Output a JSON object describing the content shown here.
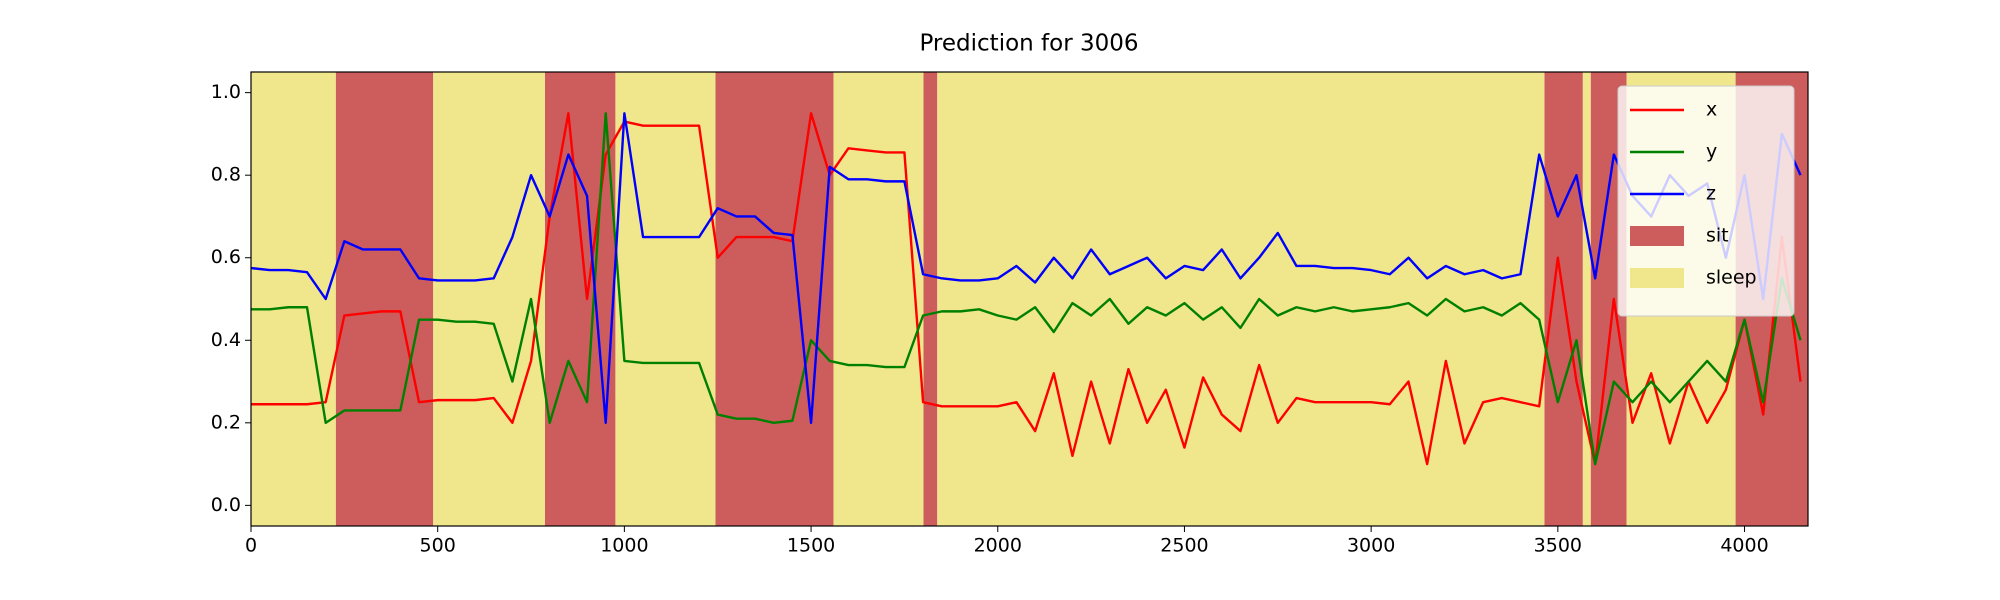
{
  "chart_data": {
    "type": "line",
    "title": "Prediction for 3006",
    "x": [
      0,
      50,
      100,
      150,
      200,
      250,
      300,
      350,
      400,
      450,
      500,
      550,
      600,
      650,
      700,
      750,
      800,
      850,
      900,
      950,
      1000,
      1050,
      1100,
      1150,
      1200,
      1250,
      1300,
      1350,
      1400,
      1450,
      1500,
      1550,
      1600,
      1650,
      1700,
      1750,
      1800,
      1850,
      1900,
      1950,
      2000,
      2050,
      2100,
      2150,
      2200,
      2250,
      2300,
      2350,
      2400,
      2450,
      2500,
      2550,
      2600,
      2650,
      2700,
      2750,
      2800,
      2850,
      2900,
      2950,
      3000,
      3050,
      3100,
      3150,
      3200,
      3250,
      3300,
      3350,
      3400,
      3450,
      3500,
      3550,
      3600,
      3650,
      3700,
      3750,
      3800,
      3850,
      3900,
      3950,
      4000,
      4050,
      4100,
      4150
    ],
    "series": [
      {
        "name": "x",
        "color": "#ff0000",
        "values": [
          0.245,
          0.245,
          0.245,
          0.245,
          0.25,
          0.46,
          0.465,
          0.47,
          0.47,
          0.25,
          0.255,
          0.255,
          0.255,
          0.26,
          0.2,
          0.35,
          0.7,
          0.95,
          0.5,
          0.85,
          0.93,
          0.92,
          0.92,
          0.92,
          0.92,
          0.6,
          0.65,
          0.65,
          0.65,
          0.64,
          0.95,
          0.8,
          0.865,
          0.86,
          0.855,
          0.855,
          0.25,
          0.24,
          0.24,
          0.24,
          0.24,
          0.25,
          0.18,
          0.32,
          0.12,
          0.3,
          0.15,
          0.33,
          0.2,
          0.28,
          0.14,
          0.31,
          0.22,
          0.18,
          0.34,
          0.2,
          0.26,
          0.25,
          0.25,
          0.25,
          0.25,
          0.245,
          0.3,
          0.1,
          0.35,
          0.15,
          0.25,
          0.26,
          0.25,
          0.24,
          0.6,
          0.3,
          0.1,
          0.5,
          0.2,
          0.32,
          0.15,
          0.3,
          0.2,
          0.28,
          0.45,
          0.22,
          0.65,
          0.3
        ]
      },
      {
        "name": "y",
        "color": "#008000",
        "values": [
          0.475,
          0.475,
          0.48,
          0.48,
          0.2,
          0.23,
          0.23,
          0.23,
          0.23,
          0.45,
          0.45,
          0.445,
          0.445,
          0.44,
          0.3,
          0.5,
          0.2,
          0.35,
          0.25,
          0.95,
          0.35,
          0.345,
          0.345,
          0.345,
          0.345,
          0.22,
          0.21,
          0.21,
          0.2,
          0.205,
          0.4,
          0.35,
          0.34,
          0.34,
          0.335,
          0.335,
          0.46,
          0.47,
          0.47,
          0.475,
          0.46,
          0.45,
          0.48,
          0.42,
          0.49,
          0.46,
          0.5,
          0.44,
          0.48,
          0.46,
          0.49,
          0.45,
          0.48,
          0.43,
          0.5,
          0.46,
          0.48,
          0.47,
          0.48,
          0.47,
          0.475,
          0.48,
          0.49,
          0.46,
          0.5,
          0.47,
          0.48,
          0.46,
          0.49,
          0.45,
          0.25,
          0.4,
          0.1,
          0.3,
          0.25,
          0.3,
          0.25,
          0.3,
          0.35,
          0.3,
          0.45,
          0.25,
          0.55,
          0.4
        ]
      },
      {
        "name": "z",
        "color": "#0000ff",
        "values": [
          0.575,
          0.57,
          0.57,
          0.565,
          0.5,
          0.64,
          0.62,
          0.62,
          0.62,
          0.55,
          0.545,
          0.545,
          0.545,
          0.55,
          0.65,
          0.8,
          0.7,
          0.85,
          0.75,
          0.2,
          0.95,
          0.65,
          0.65,
          0.65,
          0.65,
          0.72,
          0.7,
          0.7,
          0.66,
          0.655,
          0.2,
          0.82,
          0.79,
          0.79,
          0.785,
          0.785,
          0.56,
          0.55,
          0.545,
          0.545,
          0.55,
          0.58,
          0.54,
          0.6,
          0.55,
          0.62,
          0.56,
          0.58,
          0.6,
          0.55,
          0.58,
          0.57,
          0.62,
          0.55,
          0.6,
          0.66,
          0.58,
          0.58,
          0.575,
          0.575,
          0.57,
          0.56,
          0.6,
          0.55,
          0.58,
          0.56,
          0.57,
          0.55,
          0.56,
          0.85,
          0.7,
          0.8,
          0.55,
          0.85,
          0.75,
          0.7,
          0.8,
          0.75,
          0.78,
          0.6,
          0.8,
          0.5,
          0.9,
          0.8
        ]
      }
    ],
    "regions": [
      {
        "name": "sit",
        "color": "#cd5c5c",
        "spans": [
          [
            227,
            488
          ],
          [
            787,
            976
          ],
          [
            1244,
            1560
          ],
          [
            1801,
            1838
          ],
          [
            3464,
            3567
          ],
          [
            3588,
            3684
          ],
          [
            3976,
            4170
          ]
        ]
      },
      {
        "name": "sleep",
        "color": "#f0e68c",
        "spans": [
          [
            0,
            227
          ],
          [
            488,
            787
          ],
          [
            976,
            1244
          ],
          [
            1560,
            1801
          ],
          [
            1838,
            3464
          ],
          [
            3567,
            3588
          ],
          [
            3684,
            3976
          ]
        ]
      }
    ],
    "xlim": [
      0,
      4170
    ],
    "ylim": [
      -0.05,
      1.05
    ],
    "xticks": [
      0,
      500,
      1000,
      1500,
      2000,
      2500,
      3000,
      3500,
      4000
    ],
    "yticks": [
      {
        "value": 0,
        "label": "0.0"
      },
      {
        "value": 0.2,
        "label": "0.2"
      },
      {
        "value": 0.4,
        "label": "0.4"
      },
      {
        "value": 0.6,
        "label": "0.6"
      },
      {
        "value": 0.8,
        "label": "0.8"
      },
      {
        "value": 1,
        "label": "1.0"
      }
    ],
    "legend": "upper right"
  }
}
